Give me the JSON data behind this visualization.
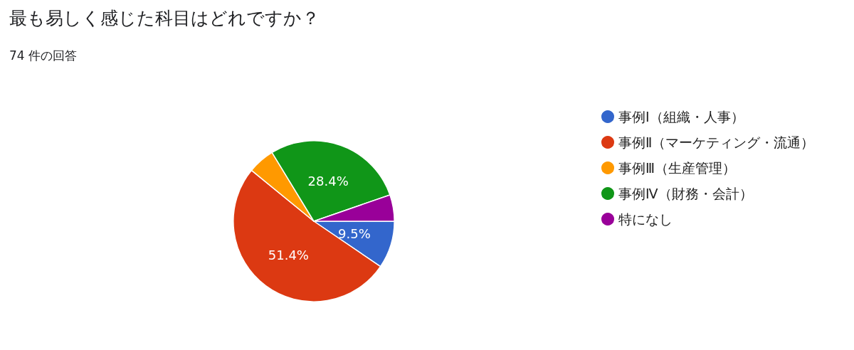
{
  "chart_data": {
    "type": "pie",
    "title": "最も易しく感じた科目はどれですか？",
    "subtitle": "74 件の回答",
    "categories": [
      "事例Ⅰ（組織・人事）",
      "事例Ⅱ（マーケティング・流通）",
      "事例Ⅲ（生産管理）",
      "事例Ⅳ（財務・会計）",
      "特になし"
    ],
    "values": [
      9.5,
      51.4,
      5.4,
      28.4,
      5.3
    ],
    "colors": [
      "#3366cc",
      "#dc3912",
      "#ff9900",
      "#109618",
      "#990099"
    ],
    "value_labels": [
      "9.5%",
      "51.4%",
      null,
      "28.4%",
      null
    ],
    "legend": "right"
  }
}
